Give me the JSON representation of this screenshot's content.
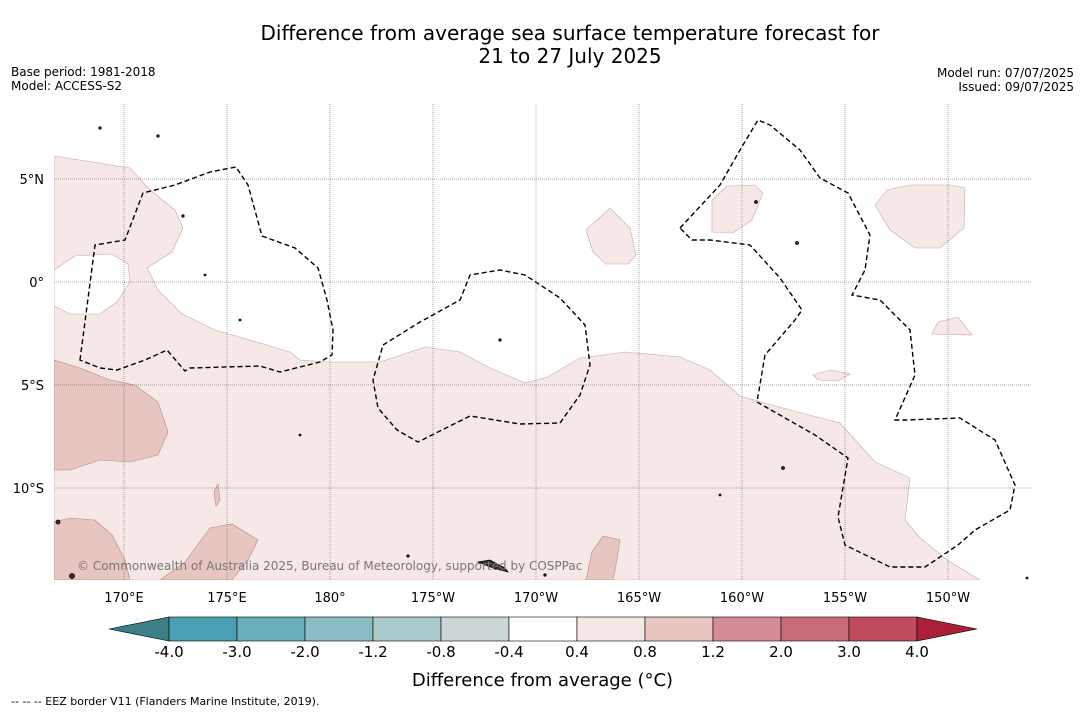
{
  "title_line1": "Difference from average sea surface temperature forecast for",
  "title_line2": "21 to 27 July 2025",
  "meta_left": [
    "Base period: 1981-2018",
    "Model: ACCESS-S2"
  ],
  "meta_right": [
    "Model run: 07/07/2025",
    "Issued: 09/07/2025"
  ],
  "lon_labels": [
    "170°E",
    "175°E",
    "180°",
    "175°W",
    "170°W",
    "165°W",
    "160°W",
    "155°W",
    "150°W"
  ],
  "lat_labels": [
    "5°N",
    "0°",
    "5°S",
    "10°S"
  ],
  "copyright": "© Commonwealth of Australia 2025, Bureau of Meteorology, supported by COSPPac",
  "colorbar": {
    "ticks": [
      "-4.0",
      "-3.0",
      "-2.0",
      "-1.2",
      "-0.8",
      "-0.4",
      "0.4",
      "0.8",
      "1.2",
      "2.0",
      "3.0",
      "4.0"
    ],
    "colors": {
      "below": "#3d7f87",
      "bins": [
        "#4aa0b2",
        "#6aaeba",
        "#8bbbc4",
        "#abc8cb",
        "#ccd6d7",
        "#ffffff",
        "#f5e8e6",
        "#e7c5c0",
        "#d48d96",
        "#c86a78",
        "#bf4b5d"
      ],
      "above": "#ac1f3a"
    },
    "title": "Difference from average (°C)"
  },
  "footer": "-- -- -- EEZ border V11 (Flanders Marine Institute, 2019)."
}
